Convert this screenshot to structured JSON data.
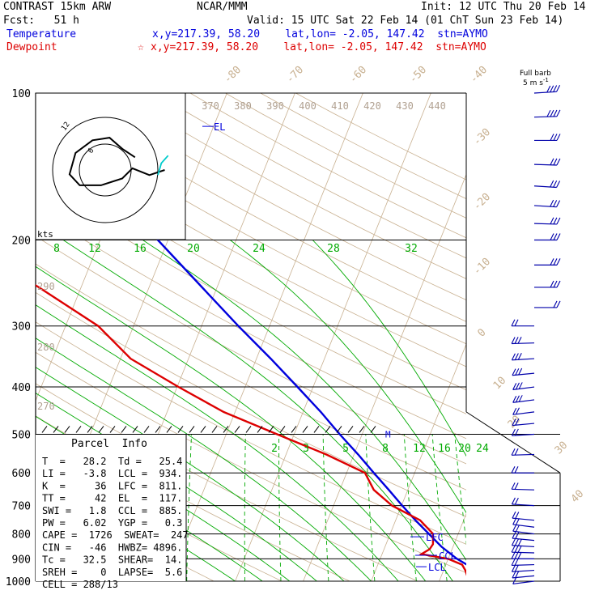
{
  "header": {
    "model": "CONTRAST 15km ARW",
    "org": "NCAR/MMM",
    "init": "Init: 12 UTC Thu 20 Feb 14",
    "fcst": "Fcst:   51 h",
    "valid": "Valid: 15 UTC Sat 22 Feb 14 (01 ChT Sun 23 Feb 14)"
  },
  "legend": {
    "temperature_label": "Temperature",
    "temperature_loc": "x,y=217.39, 58.20    lat,lon= -2.05, 147.42  stn=AYMO",
    "dewpoint_label": "Dewpoint",
    "dewpoint_star": "☆",
    "dewpoint_loc": "x,y=217.39, 58.20    lat,lon= -2.05, 147.42  stn=AYMO"
  },
  "barb_key": {
    "line1": "Full barb",
    "line2": "5 m s",
    "sup": "-1"
  },
  "hodograph": {
    "kts_label": "kts",
    "ring_label": "12",
    "inner_label": "6"
  },
  "parcel": {
    "title": "Parcel  Info",
    "rows": [
      "T  =   28.2  Td =   25.4",
      "LI =   -3.8  LCL =  934.",
      "K  =     36  LFC =  811.",
      "TT =     42  EL  =  117.",
      "SWI =   1.8  CCL =  885.",
      "PW =   6.02  YGP =   0.3",
      "CAPE =  1726  SWEAT=  247",
      "CIN =   -46  HWBZ= 4896.",
      "Tc =   32.5  SHEAR=  14.",
      "SREH =    0  LAPSE=  5.6",
      "CELL = 288/13"
    ]
  },
  "level_labels": {
    "el": "EL",
    "lfc": "LFC",
    "ccl": "CCL",
    "lcl": "LCL",
    "melt": "M"
  },
  "colors": {
    "temperature": "#0000dd",
    "dewpoint": "#dd0000",
    "dry_adiabat": "#c8b090",
    "theta_e": "#b0a090",
    "mixing_ratio": "#00aa00",
    "isobar": "#000000",
    "barb": "#0000aa",
    "hodo": "#000000",
    "hodo_cyan": "#00cccc"
  },
  "chart_data": {
    "type": "line",
    "y_axis": "pressure",
    "ylabel": "",
    "y_log_scale": true,
    "ylim": [
      1000,
      100
    ],
    "pressure_labels": [
      100,
      200,
      300,
      400,
      500,
      600,
      700,
      800,
      900,
      1000
    ],
    "isotherm_labels": [
      -80,
      -70,
      -60,
      -50,
      -40,
      -30,
      -20,
      -10,
      0,
      10,
      20,
      30,
      40
    ],
    "theta_e_labels": [
      370,
      380,
      390,
      400,
      410,
      420,
      430,
      440
    ],
    "theta_e_side_labels": [
      290,
      280,
      270
    ],
    "mixing_ratio_labels_200": [
      8,
      12,
      16,
      20,
      24,
      28,
      32
    ],
    "mixing_ratio_labels_500": [
      2,
      3,
      5,
      8,
      12,
      16,
      20,
      24
    ],
    "series": [
      {
        "name": "Temperature",
        "points": [
          [
            1000,
            27.7
          ],
          [
            975,
            26.2
          ],
          [
            950,
            24.7
          ],
          [
            925,
            23.1
          ],
          [
            900,
            21.3
          ],
          [
            850,
            18.3
          ],
          [
            800,
            15.7
          ],
          [
            750,
            12.9
          ],
          [
            700,
            10.1
          ],
          [
            650,
            7.2
          ],
          [
            600,
            4.0
          ],
          [
            550,
            0.6
          ],
          [
            500,
            -3.3
          ],
          [
            450,
            -7.4
          ],
          [
            400,
            -12.3
          ],
          [
            350,
            -17.9
          ],
          [
            300,
            -24.6
          ],
          [
            250,
            -32.2
          ],
          [
            200,
            -41.5
          ],
          [
            175,
            -47.0
          ],
          [
            150,
            -53.5
          ],
          [
            125,
            -62.0
          ],
          [
            117,
            -65.8
          ],
          [
            100,
            -74.5
          ]
        ]
      },
      {
        "name": "Dewpoint",
        "points": [
          [
            990,
            24.7
          ],
          [
            975,
            23.8
          ],
          [
            950,
            23.2
          ],
          [
            925,
            22.4
          ],
          [
            900,
            20.0
          ],
          [
            880,
            15.8
          ],
          [
            860,
            16.7
          ],
          [
            840,
            16.9
          ],
          [
            800,
            16.3
          ],
          [
            750,
            13.6
          ],
          [
            700,
            8.6
          ],
          [
            650,
            5.0
          ],
          [
            600,
            2.7
          ],
          [
            550,
            -4.1
          ],
          [
            500,
            -12.5
          ],
          [
            450,
            -21.7
          ],
          [
            400,
            -29.8
          ],
          [
            350,
            -38.5
          ],
          [
            300,
            -45.2
          ],
          [
            250,
            -56.2
          ],
          [
            210,
            -67.3
          ],
          [
            190,
            -70.3
          ],
          [
            175,
            -74.0
          ],
          [
            150,
            -80.2
          ],
          [
            125,
            -85.9
          ],
          [
            100,
            -88.4
          ]
        ]
      }
    ],
    "wind_barbs": [
      {
        "p": 1000,
        "dir": 250,
        "speed": 3
      },
      {
        "p": 975,
        "dir": 255,
        "speed": 4
      },
      {
        "p": 950,
        "dir": 260,
        "speed": 5
      },
      {
        "p": 925,
        "dir": 265,
        "speed": 5
      },
      {
        "p": 900,
        "dir": 270,
        "speed": 6
      },
      {
        "p": 875,
        "dir": 275,
        "speed": 6
      },
      {
        "p": 850,
        "dir": 280,
        "speed": 6
      },
      {
        "p": 825,
        "dir": 285,
        "speed": 5
      },
      {
        "p": 800,
        "dir": 290,
        "speed": 5
      },
      {
        "p": 775,
        "dir": 290,
        "speed": 5
      },
      {
        "p": 750,
        "dir": 285,
        "speed": 4
      },
      {
        "p": 700,
        "dir": 280,
        "speed": 4
      },
      {
        "p": 650,
        "dir": 275,
        "speed": 4
      },
      {
        "p": 600,
        "dir": 270,
        "speed": 4
      },
      {
        "p": 550,
        "dir": 265,
        "speed": 5
      },
      {
        "p": 500,
        "dir": 260,
        "speed": 5
      },
      {
        "p": 475,
        "dir": 255,
        "speed": 5
      },
      {
        "p": 450,
        "dir": 250,
        "speed": 5
      },
      {
        "p": 425,
        "dir": 250,
        "speed": 6
      },
      {
        "p": 400,
        "dir": 250,
        "speed": 6
      },
      {
        "p": 375,
        "dir": 255,
        "speed": 6
      },
      {
        "p": 350,
        "dir": 260,
        "speed": 7
      },
      {
        "p": 325,
        "dir": 265,
        "speed": 6
      },
      {
        "p": 300,
        "dir": 270,
        "speed": 5
      },
      {
        "p": 275,
        "dir": 90,
        "speed": 5
      },
      {
        "p": 250,
        "dir": 90,
        "speed": 6
      },
      {
        "p": 225,
        "dir": 90,
        "speed": 7
      },
      {
        "p": 200,
        "dir": 90,
        "speed": 7
      },
      {
        "p": 185,
        "dir": 95,
        "speed": 7
      },
      {
        "p": 170,
        "dir": 100,
        "speed": 7
      },
      {
        "p": 155,
        "dir": 100,
        "speed": 7
      },
      {
        "p": 140,
        "dir": 95,
        "speed": 6
      },
      {
        "p": 125,
        "dir": 90,
        "speed": 7
      },
      {
        "p": 112,
        "dir": 85,
        "speed": 8
      },
      {
        "p": 100,
        "dir": 80,
        "speed": 8
      }
    ],
    "hodograph": [
      [
        3.5,
        -1.5
      ],
      [
        2.0,
        -2.5
      ],
      [
        0.5,
        -3.8
      ],
      [
        -1.5,
        -3.5
      ],
      [
        -3.5,
        -2.0
      ],
      [
        -4.2,
        0.5
      ],
      [
        -3.0,
        1.8
      ],
      [
        -0.5,
        1.8
      ],
      [
        2.0,
        1.0
      ],
      [
        3.2,
        -0.2
      ],
      [
        5.2,
        0.6
      ],
      [
        7.0,
        0.0
      ]
    ],
    "hodograph_cyan": [
      [
        6.2,
        0.6
      ],
      [
        6.6,
        -0.8
      ],
      [
        7.4,
        -1.7
      ]
    ],
    "levels": {
      "el": 117,
      "lfc": 811,
      "ccl": 885,
      "lcl": 934,
      "melt": 500
    }
  }
}
